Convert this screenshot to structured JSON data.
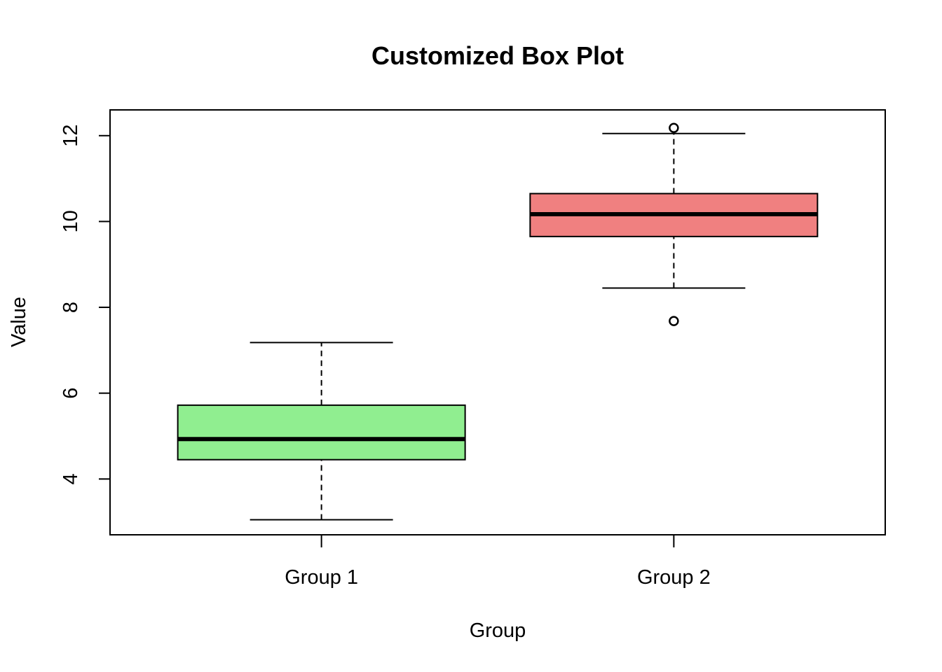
{
  "chart_data": {
    "type": "box",
    "title": "Customized Box Plot",
    "xlabel": "Group",
    "ylabel": "Value",
    "ylim": [
      2.7,
      12.6
    ],
    "y_ticks": [
      4,
      6,
      8,
      10,
      12
    ],
    "grid": false,
    "legend": "none",
    "categories": [
      "Group 1",
      "Group 2"
    ],
    "boxes": [
      {
        "category": "Group 1",
        "color": "#90EE90",
        "whisker_low": 3.05,
        "q1": 4.45,
        "median": 4.93,
        "q3": 5.72,
        "whisker_high": 7.18,
        "outliers": []
      },
      {
        "category": "Group 2",
        "color": "#F08080",
        "whisker_low": 8.45,
        "q1": 9.65,
        "median": 10.17,
        "q3": 10.65,
        "whisker_high": 12.05,
        "outliers": [
          12.18,
          7.68
        ]
      }
    ]
  }
}
